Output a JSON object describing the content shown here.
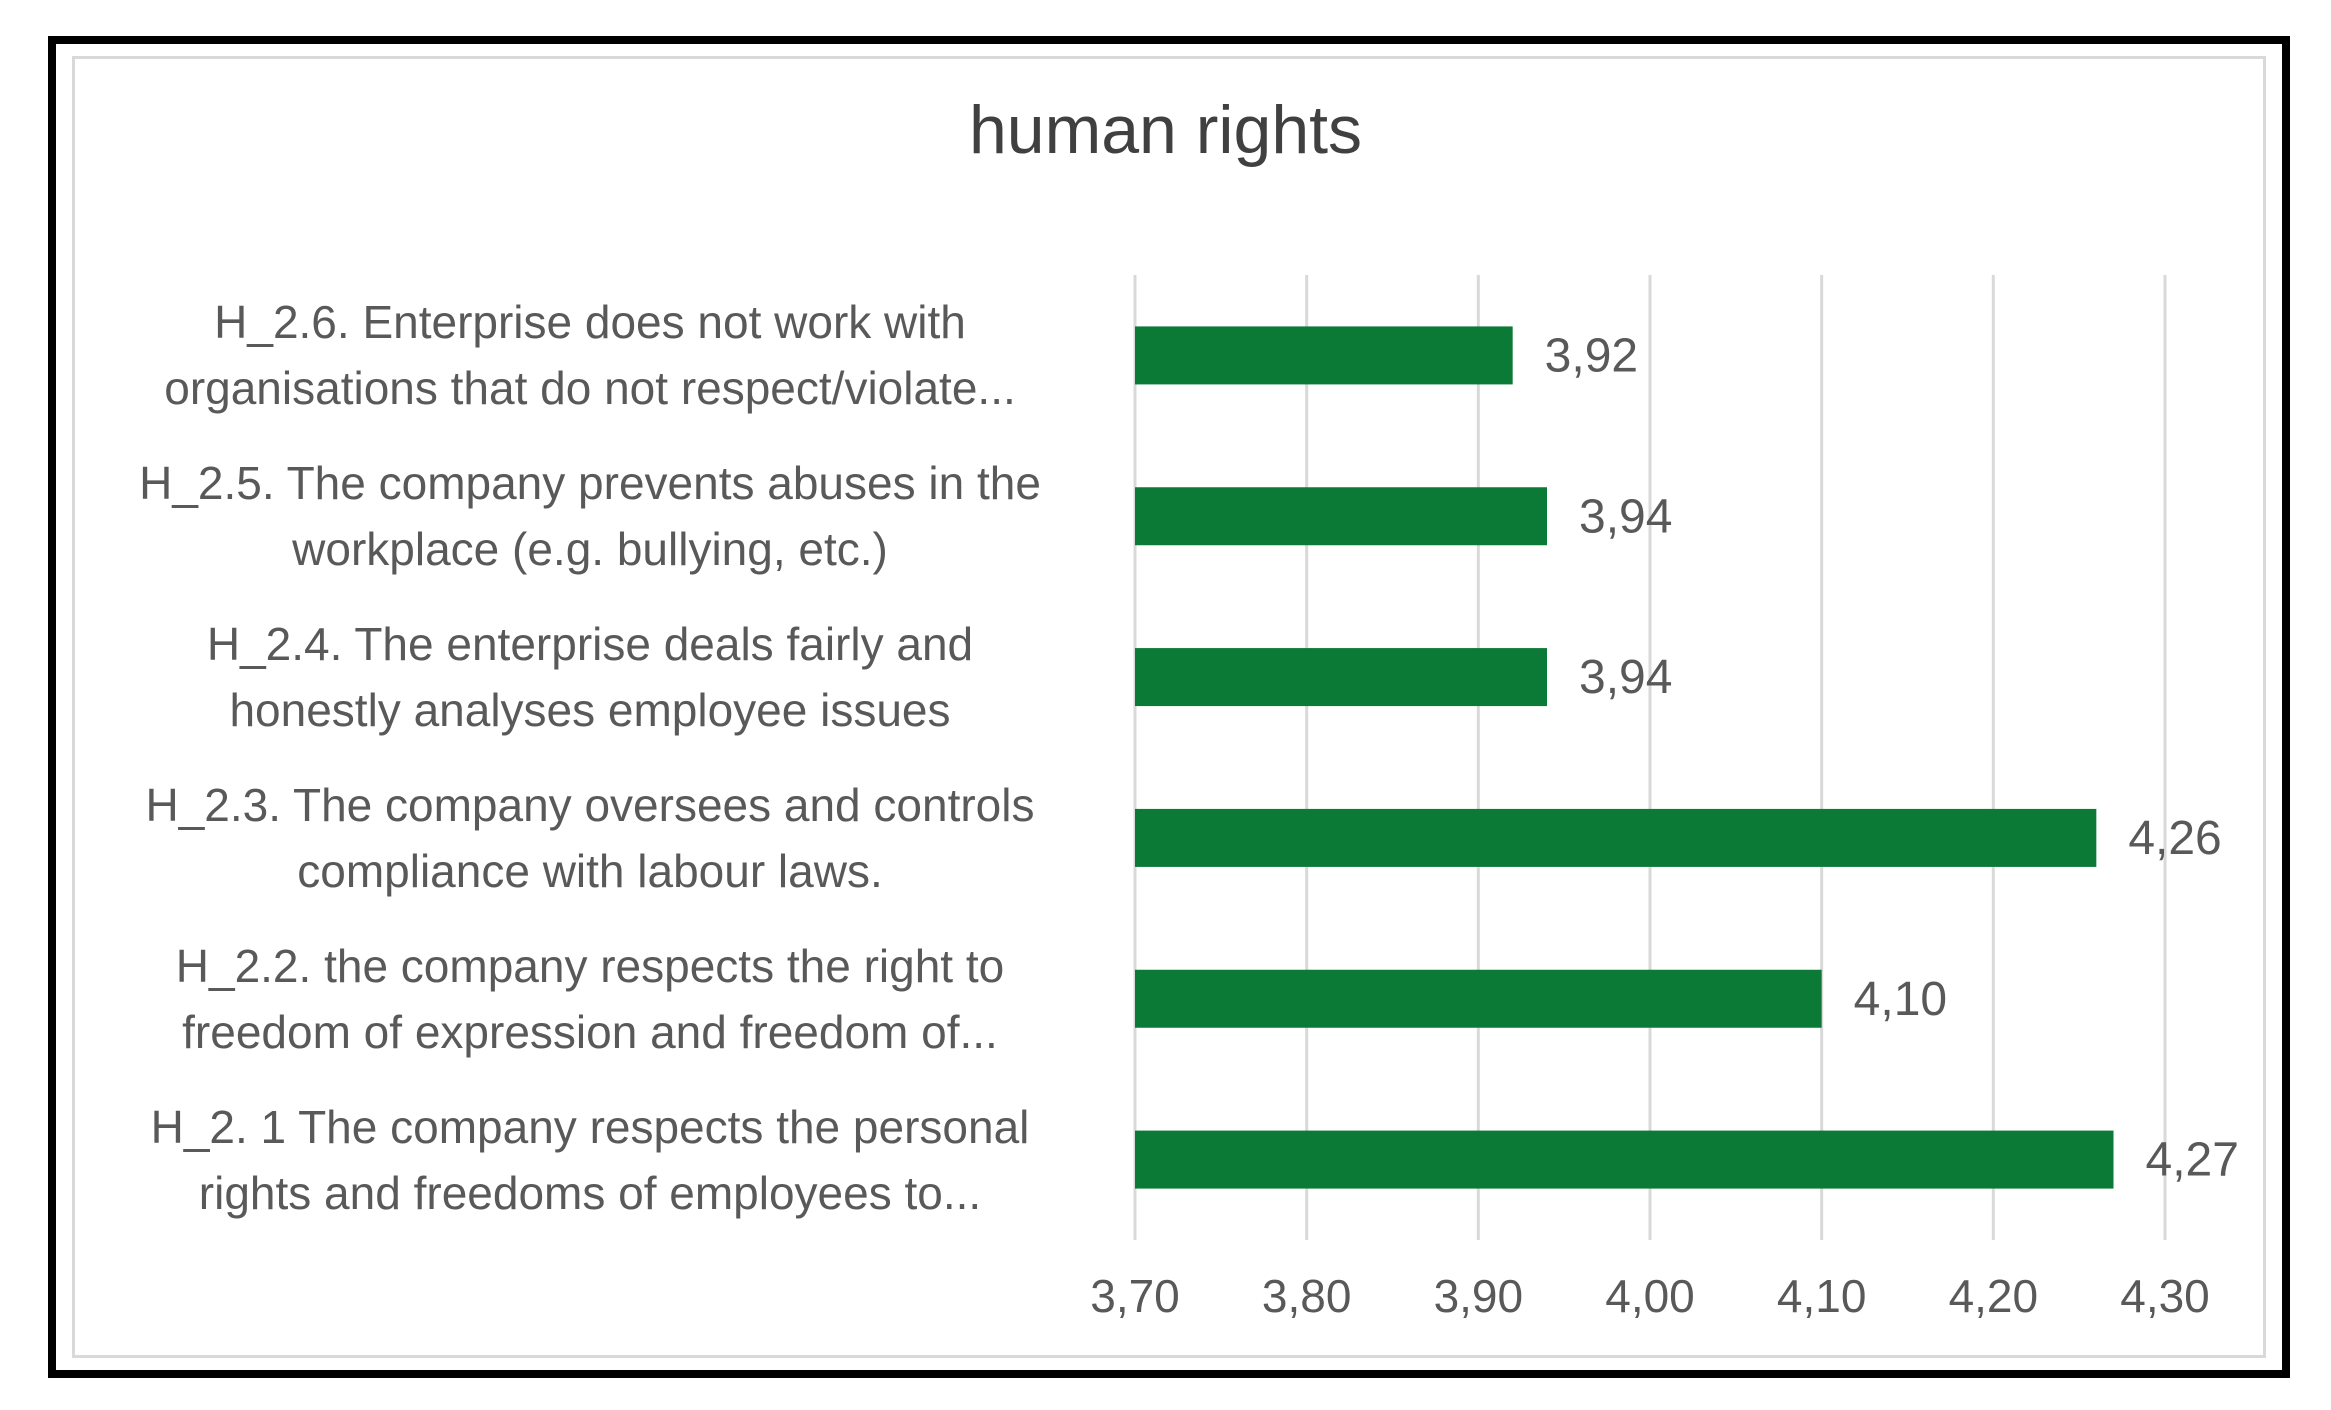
{
  "chart_data": {
    "type": "bar",
    "orientation": "horizontal",
    "title": "human rights",
    "xlabel": "",
    "ylabel": "",
    "xlim": [
      3.7,
      4.3
    ],
    "x_ticks": [
      "3,70",
      "3,80",
      "3,90",
      "4,00",
      "4,10",
      "4,20",
      "4,30"
    ],
    "grid": true,
    "legend": "none",
    "bar_color": "#0b7a36",
    "categories": [
      [
        "H_2.6. Enterprise does not work with",
        "organisations that do not respect/violate..."
      ],
      [
        "H_2.5. The company prevents abuses in the",
        "workplace (e.g. bullying, etc.)"
      ],
      [
        "H_2.4. The enterprise deals fairly and",
        "honestly analyses employee issues"
      ],
      [
        "H_2.3. The company oversees and controls",
        "compliance with labour laws."
      ],
      [
        "H_2.2. the company respects the right to",
        "freedom of expression and freedom of..."
      ],
      [
        "H_2. 1 The company respects the personal",
        "rights and freedoms of employees to..."
      ]
    ],
    "values": [
      3.92,
      3.94,
      3.94,
      4.26,
      4.1,
      4.27
    ],
    "value_labels": [
      "3,92",
      "3,94",
      "3,94",
      "4,26",
      "4,10",
      "4,27"
    ]
  }
}
